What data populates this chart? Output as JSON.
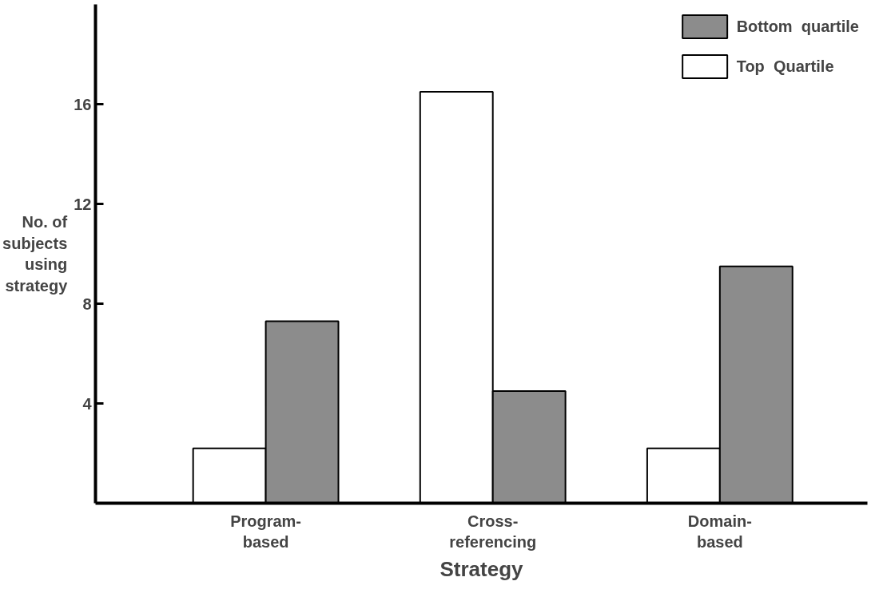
{
  "chart_data": {
    "type": "bar",
    "xlabel": "Strategy",
    "ylabel": "No. of subjects using strategy",
    "categories": [
      "Program-based",
      "Cross-referencing",
      "Domain-based"
    ],
    "series": [
      {
        "name": "Top  Quartile",
        "color": "#ffffff",
        "values": [
          2.2,
          16.5,
          2.2
        ]
      },
      {
        "name": "Bottom  quartile",
        "color": "#8c8c8c",
        "values": [
          7.3,
          4.5,
          9.5
        ]
      }
    ],
    "ylim": [
      0,
      20
    ],
    "yticks": [
      4,
      8,
      12,
      16
    ],
    "grid": false,
    "legend": "top right"
  }
}
